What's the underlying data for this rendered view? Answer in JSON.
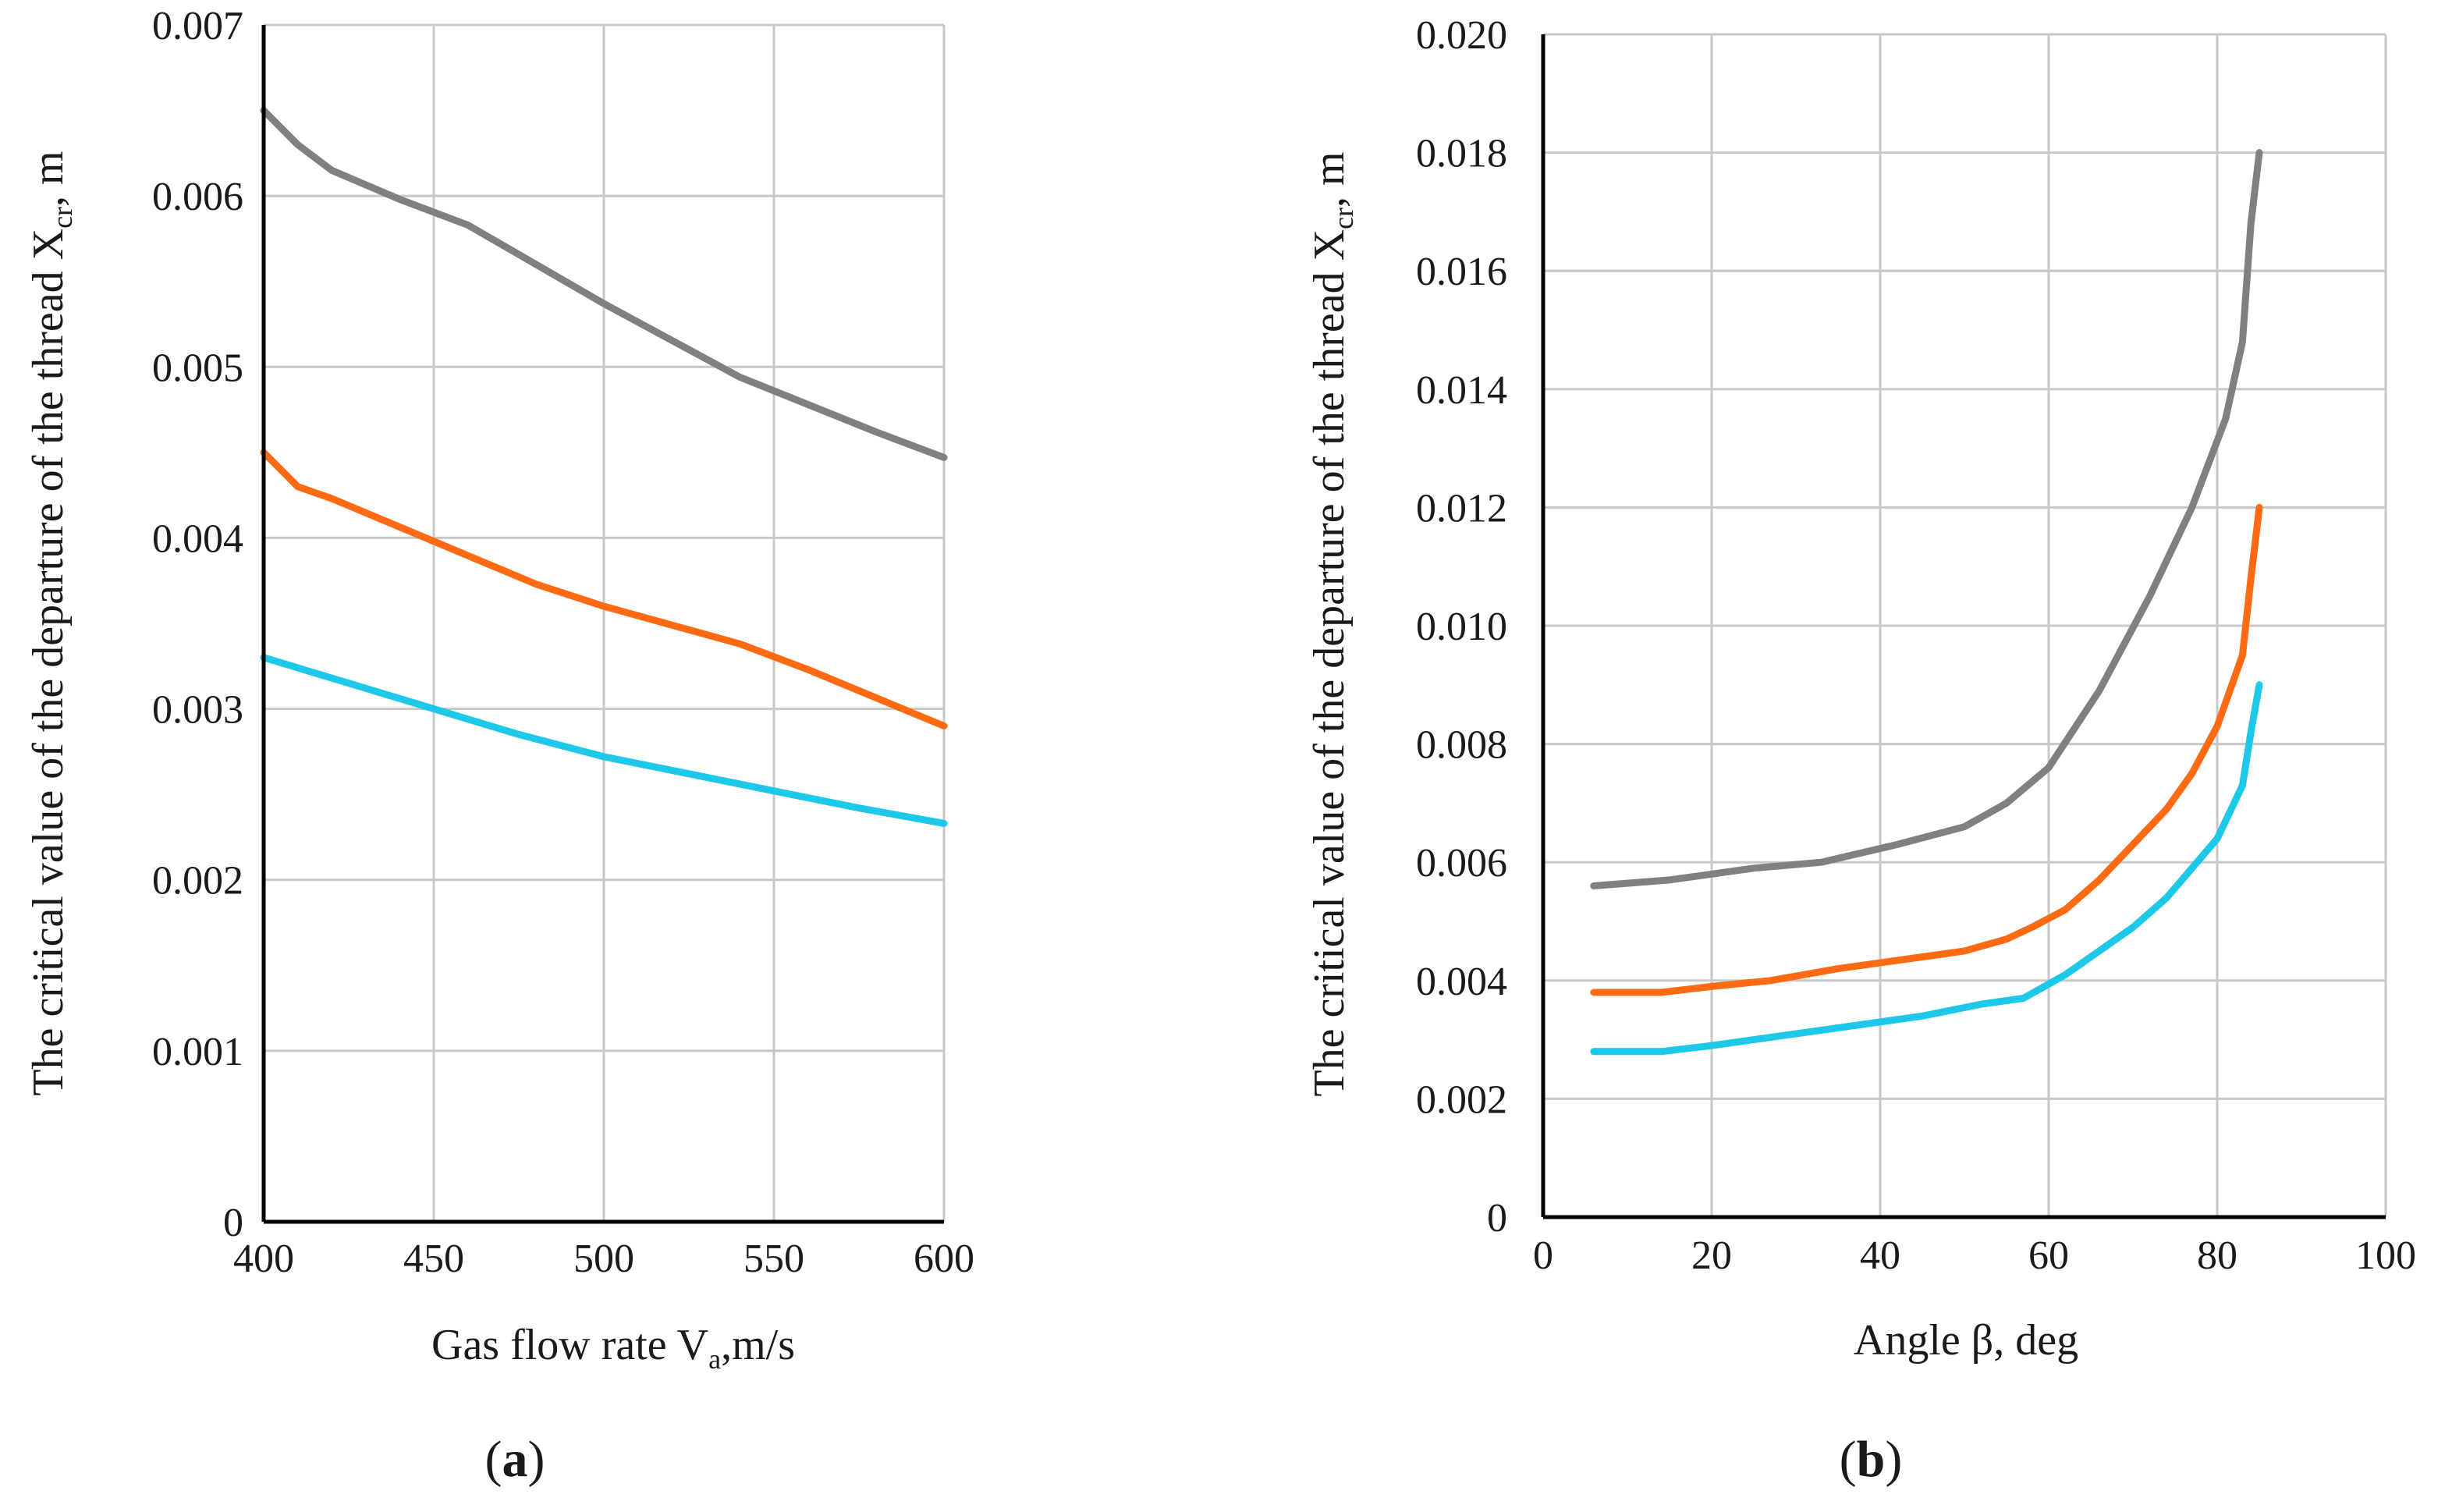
{
  "chart_data": [
    {
      "type": "line",
      "panel_label": "a",
      "xlabel": "Gas flow rate V",
      "xlabel_sub": "a",
      "xlabel_tail": ",m/s",
      "ylabel": "The critical value of the departure of the thread X",
      "ylabel_sub": "cr",
      "ylabel_tail": ", m",
      "xlim": [
        400,
        600
      ],
      "ylim": [
        0,
        0.007
      ],
      "x_ticks": [
        "400",
        "450",
        "500",
        "550",
        "600"
      ],
      "x_tick_values": [
        400,
        450,
        500,
        550,
        600
      ],
      "y_ticks": [
        "0",
        "0.001",
        "0.002",
        "0.003",
        "0.004",
        "0.005",
        "0.006",
        "0.007"
      ],
      "y_tick_values": [
        0,
        0.001,
        0.002,
        0.003,
        0.004,
        0.005,
        0.006,
        0.007
      ],
      "grid": true,
      "series": [
        {
          "color": "#808080",
          "x": [
            400,
            410,
            420,
            440,
            460,
            500,
            540,
            580,
            600
          ],
          "y": [
            0.0065,
            0.0063,
            0.00615,
            0.00598,
            0.00583,
            0.00537,
            0.00494,
            0.00462,
            0.00447
          ]
        },
        {
          "color": "#ff6a13",
          "x": [
            400,
            410,
            420,
            450,
            480,
            500,
            540,
            560,
            600
          ],
          "y": [
            0.0045,
            0.0043,
            0.00423,
            0.00398,
            0.00373,
            0.0036,
            0.00338,
            0.00323,
            0.0029
          ]
        },
        {
          "color": "#1ec8e8",
          "x": [
            400,
            425,
            450,
            475,
            500,
            525,
            550,
            575,
            600
          ],
          "y": [
            0.0033,
            0.00315,
            0.003,
            0.00285,
            0.00272,
            0.00262,
            0.00252,
            0.00242,
            0.00233
          ]
        }
      ]
    },
    {
      "type": "line",
      "panel_label": "b",
      "xlabel": "Angle β, deg",
      "ylabel": "The critical value of the departure of the thread X",
      "ylabel_sub": "cr",
      "ylabel_tail": ", m",
      "xlim": [
        0,
        100
      ],
      "ylim": [
        0,
        0.02
      ],
      "x_ticks": [
        "0",
        "20",
        "40",
        "60",
        "80",
        "100"
      ],
      "x_tick_values": [
        0,
        20,
        40,
        60,
        80,
        100
      ],
      "y_ticks": [
        "0",
        "0.002",
        "0.004",
        "0.006",
        "0.008",
        "0.010",
        "0.012",
        "0.014",
        "0.016",
        "0.018",
        "0.020"
      ],
      "y_tick_values": [
        0,
        0.002,
        0.004,
        0.006,
        0.008,
        0.01,
        0.012,
        0.014,
        0.016,
        0.018,
        0.02
      ],
      "grid": true,
      "series": [
        {
          "color": "#808080",
          "x": [
            6,
            15,
            25,
            33,
            42,
            50,
            55,
            60,
            66,
            72,
            77,
            81,
            83,
            84,
            85
          ],
          "y": [
            0.0056,
            0.0057,
            0.0059,
            0.006,
            0.0063,
            0.0066,
            0.007,
            0.0076,
            0.0089,
            0.0105,
            0.012,
            0.0135,
            0.0148,
            0.0168,
            0.018
          ]
        },
        {
          "color": "#ff6a13",
          "x": [
            6,
            14,
            20,
            27,
            35,
            45,
            50,
            55,
            58,
            62,
            66,
            70,
            74,
            77,
            80,
            83,
            84,
            85
          ],
          "y": [
            0.0038,
            0.0038,
            0.0039,
            0.004,
            0.0042,
            0.0044,
            0.0045,
            0.0047,
            0.0049,
            0.0052,
            0.0057,
            0.0063,
            0.0069,
            0.0075,
            0.0083,
            0.0095,
            0.0108,
            0.012
          ]
        },
        {
          "color": "#1ec8e8",
          "x": [
            6,
            14,
            20,
            25,
            35,
            45,
            52,
            57,
            62,
            66,
            70,
            74,
            77,
            80,
            83,
            84,
            85
          ],
          "y": [
            0.0028,
            0.0028,
            0.0029,
            0.003,
            0.0032,
            0.0034,
            0.0036,
            0.0037,
            0.0041,
            0.0045,
            0.0049,
            0.0054,
            0.0059,
            0.0064,
            0.0073,
            0.0082,
            0.009
          ]
        }
      ]
    }
  ]
}
